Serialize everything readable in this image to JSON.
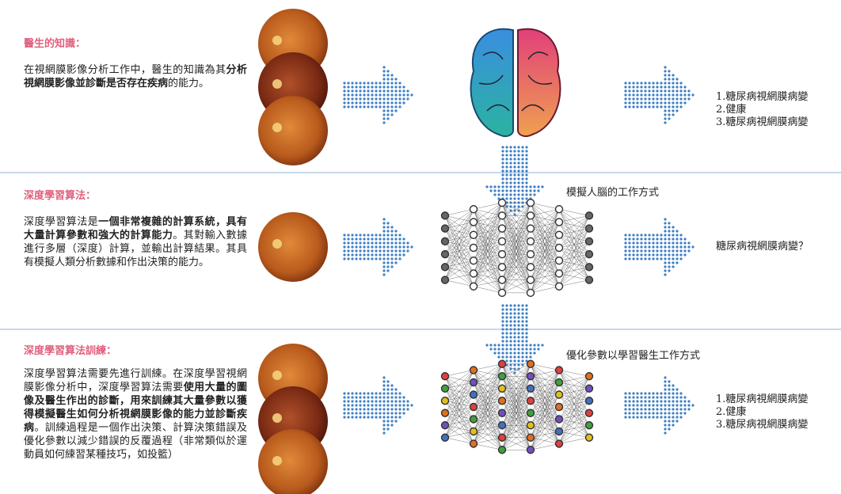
{
  "sections": [
    {
      "title": "醫生的知識：",
      "body": [
        {
          "text": "在視網膜影像分析工作中，醫生的知識為其",
          "bold": false
        },
        {
          "text": "分析視網膜影像並診斷是否存在疾病",
          "bold": true
        },
        {
          "text": "的能力。",
          "bold": false
        }
      ],
      "outputs": [
        "1.糖尿病視網膜病變",
        "2.健康",
        "3.糖尿病視網膜病變"
      ]
    },
    {
      "title": "深度學習算法：",
      "body": [
        {
          "text": "深度學習算法是",
          "bold": false
        },
        {
          "text": "一個非常複雜的計算系統，具有大量計算參數和強大的計算能力",
          "bold": true
        },
        {
          "text": "。其對輸入數據進行多層（深度）計算，並輸出計算結果。其具有模擬人類分析數據和作出決策的能力。",
          "bold": false
        }
      ],
      "label": "模擬人腦的工作方式",
      "outputs": [
        "糖尿病視網膜病變？"
      ]
    },
    {
      "title": "深度學習算法訓練：",
      "body": [
        {
          "text": "深度學習算法需要先進行訓練。在深度學習視網膜影像分析中，深度學習算法需要",
          "bold": false
        },
        {
          "text": "使用大量的圖像及醫生作出的診斷，用來訓練其大量參數以獲得模擬醫生如何分析視網膜影像的能力並診斷疾病",
          "bold": true
        },
        {
          "text": "。訓練過程是一個作出決策、計算決策錯誤及優化參數以減少錯誤的反覆過程（非常類似於運動員如何練習某種技巧，如投籃）",
          "bold": false
        }
      ],
      "label": "優化參數以學習醫生工作方式",
      "outputs": [
        "1.糖尿病視網膜病變",
        "2.健康",
        "3.糖尿病視網膜病變"
      ]
    }
  ]
}
